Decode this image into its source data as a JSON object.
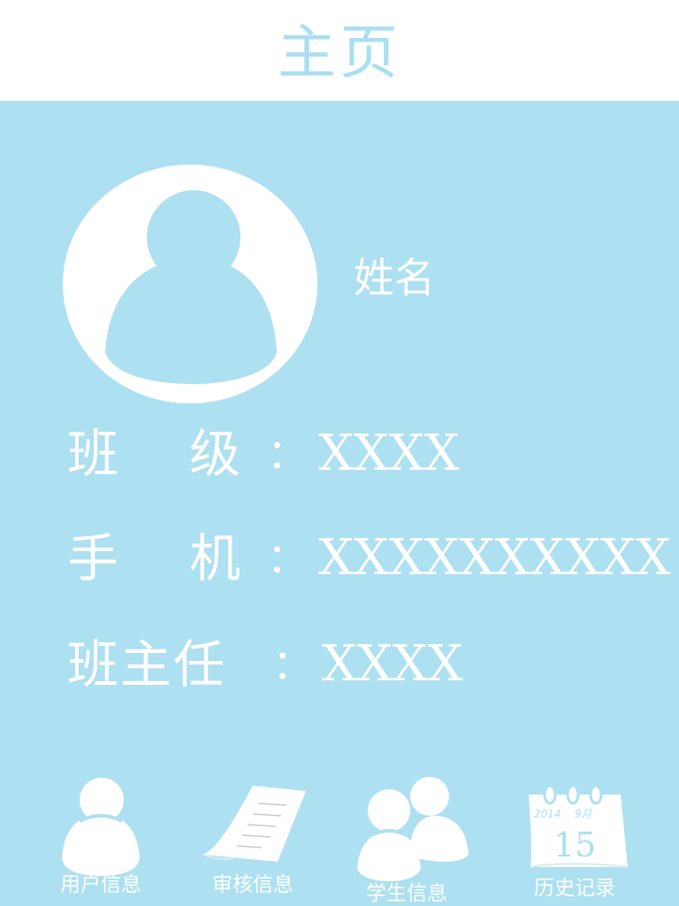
{
  "header": {
    "title": "主页"
  },
  "profile": {
    "name_label": "姓名"
  },
  "info": {
    "class": {
      "label_chars": [
        "班",
        "级"
      ],
      "colon": "：",
      "value": "XXXX"
    },
    "phone": {
      "label_chars": [
        "手",
        "机"
      ],
      "colon": "：",
      "value": "XXXXXXXXXX"
    },
    "head_teacher": {
      "label": "班主任",
      "colon": "：",
      "value": "XXXX"
    }
  },
  "bottom_nav": {
    "user_info": {
      "label": "用户信息",
      "icon": "user-icon"
    },
    "review_info": {
      "label": "审核信息",
      "icon": "document-icon"
    },
    "student_info": {
      "label": "学生信息",
      "icon": "users-icon"
    },
    "history": {
      "label": "历史记录",
      "icon": "calendar-icon",
      "calendar_year": "2014",
      "calendar_month": "9月",
      "calendar_day": "15"
    }
  },
  "colors": {
    "background": "#ade0f1",
    "header": "#ffffff",
    "accent": "#a9dff0",
    "text": "#ffffff"
  }
}
